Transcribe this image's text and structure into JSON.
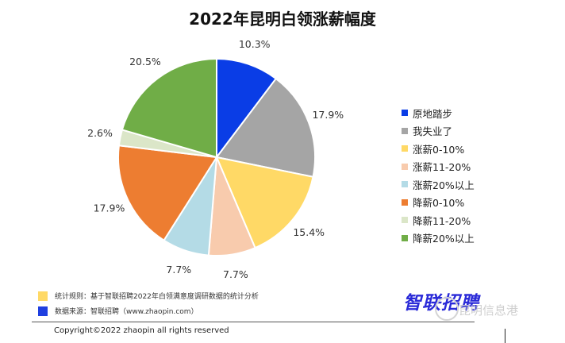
{
  "chart_data": {
    "type": "pie",
    "title": "2022年昆明白领涨薪幅度",
    "slices": [
      {
        "label": "原地踏步",
        "value": 10.3,
        "value_label": "10.3%",
        "color": "#0a3de6"
      },
      {
        "label": "我失业了",
        "value": 17.9,
        "value_label": "17.9%",
        "color": "#a5a5a5"
      },
      {
        "label": "涨薪0-10%",
        "value": 15.4,
        "value_label": "15.4%",
        "color": "#ffd966"
      },
      {
        "label": "涨薪11-20%",
        "value": 7.7,
        "value_label": "7.7%",
        "color": "#f8cbad"
      },
      {
        "label": "涨薪20%以上",
        "value": 7.7,
        "value_label": "7.7%",
        "color": "#b4dbe6"
      },
      {
        "label": "降薪0-10%",
        "value": 17.9,
        "value_label": "17.9%",
        "color": "#ed7d31"
      },
      {
        "label": "降薪11-20%",
        "value": 2.6,
        "value_label": "2.6%",
        "color": "#dbe6c8"
      },
      {
        "label": "降薪20%以上",
        "value": 20.5,
        "value_label": "20.5%",
        "color": "#70ad47"
      }
    ],
    "legend_position": "right"
  },
  "notes": [
    {
      "text": "统计规则：基于智联招聘2022年白领满意度调研数据的统计分析",
      "color": "#ffd966"
    },
    {
      "text": "数据来源：智联招聘（www.zhaopin.com）",
      "color": "#1f3fe0"
    }
  ],
  "copyright": "Copyright©2022 zhaopin all rights reserved",
  "logo_text": "智联招聘",
  "watermark_text": "昆明信息港"
}
